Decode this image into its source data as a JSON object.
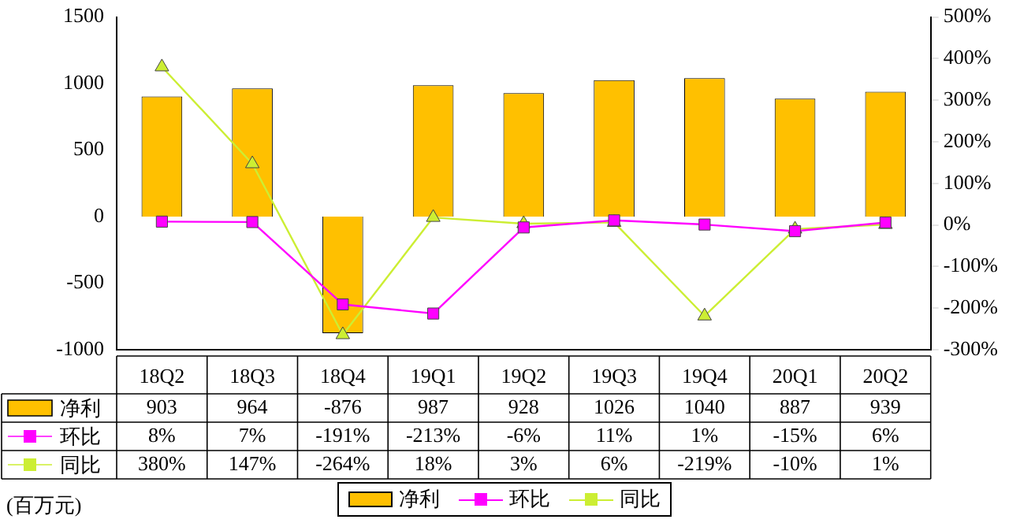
{
  "chart_data": {
    "type": "bar",
    "categories": [
      "18Q2",
      "18Q3",
      "18Q4",
      "19Q1",
      "19Q2",
      "19Q3",
      "19Q4",
      "20Q1",
      "20Q2"
    ],
    "series": [
      {
        "name": "净利",
        "color": "#ffc000",
        "values": [
          903,
          964,
          -876,
          987,
          928,
          1026,
          1040,
          887,
          939
        ],
        "value_labels": [
          "903",
          "964",
          "-876",
          "987",
          "928",
          "1026",
          "1040",
          "887",
          "939"
        ]
      },
      {
        "name": "环比",
        "type": "line",
        "axis": "y2",
        "color": "#ff00ff",
        "marker": "square",
        "values": [
          8,
          7,
          -191,
          -213,
          -6,
          11,
          1,
          -15,
          6
        ],
        "value_labels": [
          "8%",
          "7%",
          "-191%",
          "-213%",
          "-6%",
          "11%",
          "1%",
          "-15%",
          "6%"
        ]
      },
      {
        "name": "同比",
        "type": "line",
        "axis": "y2",
        "color": "#ccee33",
        "marker": "triangle",
        "values": [
          380,
          147,
          -264,
          18,
          3,
          6,
          -219,
          -10,
          1
        ],
        "value_labels": [
          "380%",
          "147%",
          "-264%",
          "18%",
          "3%",
          "6%",
          "-219%",
          "-10%",
          "1%"
        ]
      }
    ],
    "ylim": [
      -1000,
      1500
    ],
    "yticks": [
      -1000,
      -500,
      0,
      500,
      1000,
      1500
    ],
    "y2lim": [
      -300,
      500
    ],
    "y2ticks": [
      {
        "value": -300,
        "label": "-300%"
      },
      {
        "value": -200,
        "label": "-200%"
      },
      {
        "value": -100,
        "label": "-100%"
      },
      {
        "value": 0,
        "label": "0%"
      },
      {
        "value": 100,
        "label": "100%"
      },
      {
        "value": 200,
        "label": "200%"
      },
      {
        "value": 300,
        "label": "300%"
      },
      {
        "value": 400,
        "label": "400%"
      },
      {
        "value": 500,
        "label": "500%"
      }
    ],
    "grid": false,
    "legend": "bottom",
    "line_style": "solid",
    "annotations": [
      "(百万元)"
    ]
  }
}
